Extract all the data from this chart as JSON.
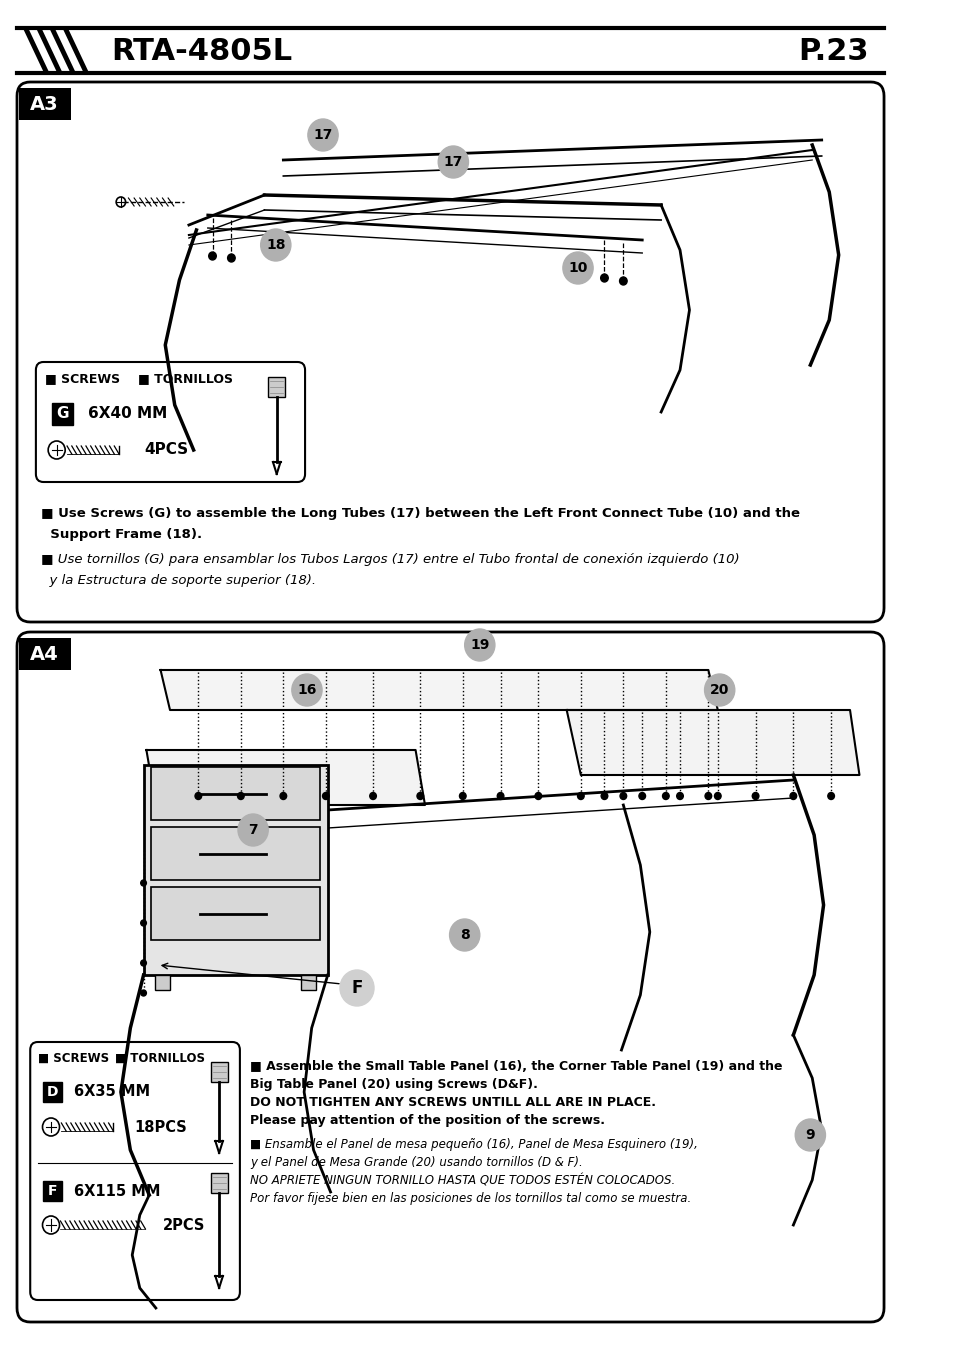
{
  "page_title": "RTA-4805L",
  "page_num": "P.23",
  "bg_color": "#ffffff",
  "border_color": "#000000",
  "section_A3_label": "A3",
  "section_A4_label": "A4",
  "screws_label": "SCREWS",
  "tornillos_label": "TORNILLOS",
  "screw_G_label": "G",
  "screw_G_size": "6X40 MM",
  "screw_G_count": "4PCS",
  "screw_D_label": "D",
  "screw_D_size": "6X35 MM",
  "screw_D_count": "18PCS",
  "screw_F_label": "F",
  "screw_F_size": "6X115 MM",
  "screw_F_count": "2PCS",
  "inst_A3_en_1": "Use Screws (G) to assemble the Long Tubes (17) between the Left Front Connect Tube (10) and the",
  "inst_A3_en_2": "  Support Frame (18).",
  "inst_A3_es_1": "Use tornillos (G) para ensamblar los Tubos Largos (17) entre el Tubo frontal de conexión izquierdo (10)",
  "inst_A3_es_2": "  y la Estructura de soporte superior (18).",
  "inst_A4_en_1a": "Assemble the Small Table Panel (16), the Corner Table Panel (19) and the",
  "inst_A4_en_1b": "Big Table Panel (20) using Screws (D&F).",
  "inst_A4_en_2": "DO NOT TIGHTEN ANY SCREWS UNTILL ALL ARE IN PLACE.",
  "inst_A4_en_3": "Please pay attention of the position of the screws.",
  "inst_A4_es_1a": "Ensamble el Panel de mesa pequeño (16), Panel de Mesa Esquinero (19),",
  "inst_A4_es_1b": "y el Panel de Mesa Grande (20) usando tornillos (D & F).",
  "inst_A4_es_2": "NO APRIETE NINGUN TORNILLO HASTA QUE TODOS ESTÉN COLOCADOS.",
  "inst_A4_es_3": "Por favor fijese bien en las posiciones de los tornillos tal como se muestra."
}
